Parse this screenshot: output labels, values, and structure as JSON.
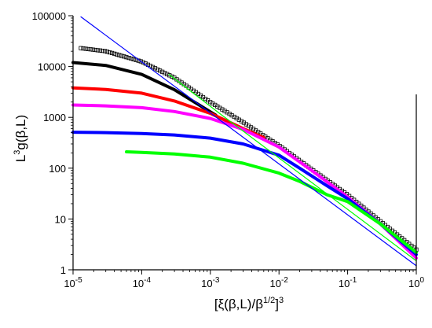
{
  "chart_data": {
    "type": "scatter",
    "xscale": "log",
    "yscale": "log",
    "xlim": [
      1e-05,
      1
    ],
    "ylim": [
      1,
      100000
    ],
    "grid": false,
    "x_ticks": [
      {
        "value": 1e-05,
        "base": "10",
        "exp": "-5"
      },
      {
        "value": 0.0001,
        "base": "10",
        "exp": "-4"
      },
      {
        "value": 0.001,
        "base": "10",
        "exp": "-3"
      },
      {
        "value": 0.01,
        "base": "10",
        "exp": "-2"
      },
      {
        "value": 0.1,
        "base": "10",
        "exp": "-1"
      },
      {
        "value": 1,
        "base": "10",
        "exp": "0"
      }
    ],
    "y_ticks": [
      {
        "value": 1,
        "label": "1"
      },
      {
        "value": 10,
        "label": "10"
      },
      {
        "value": 100,
        "label": "100"
      },
      {
        "value": 1000,
        "label": "1000"
      },
      {
        "value": 10000,
        "label": "10000"
      },
      {
        "value": 100000,
        "label": "100000"
      }
    ],
    "xlabel": {
      "pre": "[ξ(β,L)/β",
      "sup1": "1/2",
      "mid": "]",
      "sup2": "3"
    },
    "ylabel": {
      "pre": "L",
      "sup": "3",
      "post": "g(β,L)"
    },
    "series": [
      {
        "color": "#000000",
        "style": "open-squares",
        "points": [
          [
            1.3e-05,
            23000
          ],
          [
            3e-05,
            20000
          ],
          [
            0.0001,
            12500
          ],
          [
            0.0003,
            6000
          ],
          [
            0.001,
            2000
          ],
          [
            0.003,
            800
          ],
          [
            0.01,
            280
          ],
          [
            0.03,
            95
          ],
          [
            0.1,
            30
          ],
          [
            0.3,
            9
          ],
          [
            1,
            2.5
          ]
        ]
      },
      {
        "color": "#000000",
        "style": "thick-line",
        "points": [
          [
            1e-05,
            12000
          ],
          [
            3e-05,
            10500
          ],
          [
            0.0001,
            7000
          ],
          [
            0.0003,
            3500
          ],
          [
            0.0012,
            1100
          ]
        ]
      },
      {
        "color": "#ff0000",
        "style": "thick-line",
        "points": [
          [
            1e-05,
            3800
          ],
          [
            3e-05,
            3550
          ],
          [
            0.0001,
            3000
          ],
          [
            0.0003,
            2100
          ],
          [
            0.001,
            1200
          ],
          [
            0.003,
            600
          ],
          [
            0.006,
            400
          ]
        ]
      },
      {
        "color": "#ff00ff",
        "style": "thick-line",
        "points": [
          [
            1e-05,
            1750
          ],
          [
            3e-05,
            1680
          ],
          [
            0.0001,
            1550
          ],
          [
            0.0003,
            1300
          ],
          [
            0.001,
            950
          ],
          [
            0.003,
            580
          ],
          [
            0.01,
            260
          ],
          [
            0.03,
            90
          ],
          [
            0.1,
            27
          ],
          [
            0.3,
            8
          ],
          [
            1,
            1.7
          ]
        ]
      },
      {
        "color": "#0000ff",
        "style": "thick-line",
        "points": [
          [
            1e-05,
            510
          ],
          [
            3e-05,
            500
          ],
          [
            0.0001,
            480
          ],
          [
            0.0003,
            450
          ],
          [
            0.001,
            390
          ],
          [
            0.003,
            300
          ],
          [
            0.01,
            180
          ],
          [
            0.02,
            100
          ],
          [
            0.05,
            45
          ],
          [
            0.1,
            25
          ],
          [
            0.3,
            8
          ],
          [
            1,
            2
          ]
        ]
      },
      {
        "color": "#00ff00",
        "style": "thick-line",
        "points": [
          [
            6e-05,
            210
          ],
          [
            0.0001,
            205
          ],
          [
            0.0003,
            190
          ],
          [
            0.001,
            165
          ],
          [
            0.003,
            125
          ],
          [
            0.01,
            80
          ],
          [
            0.02,
            55
          ],
          [
            0.05,
            30
          ],
          [
            0.1,
            22
          ],
          [
            0.3,
            8
          ],
          [
            1,
            2.2
          ]
        ]
      },
      {
        "color": "#0000ff",
        "style": "thin-line",
        "points": [
          [
            1.3e-05,
            95000
          ],
          [
            1,
            1.2
          ]
        ]
      },
      {
        "color": "#00ff00",
        "style": "thin-line",
        "points": [
          [
            0.00025,
            7000
          ],
          [
            0.0013,
            1250
          ],
          [
            1,
            1.5
          ]
        ]
      }
    ]
  }
}
